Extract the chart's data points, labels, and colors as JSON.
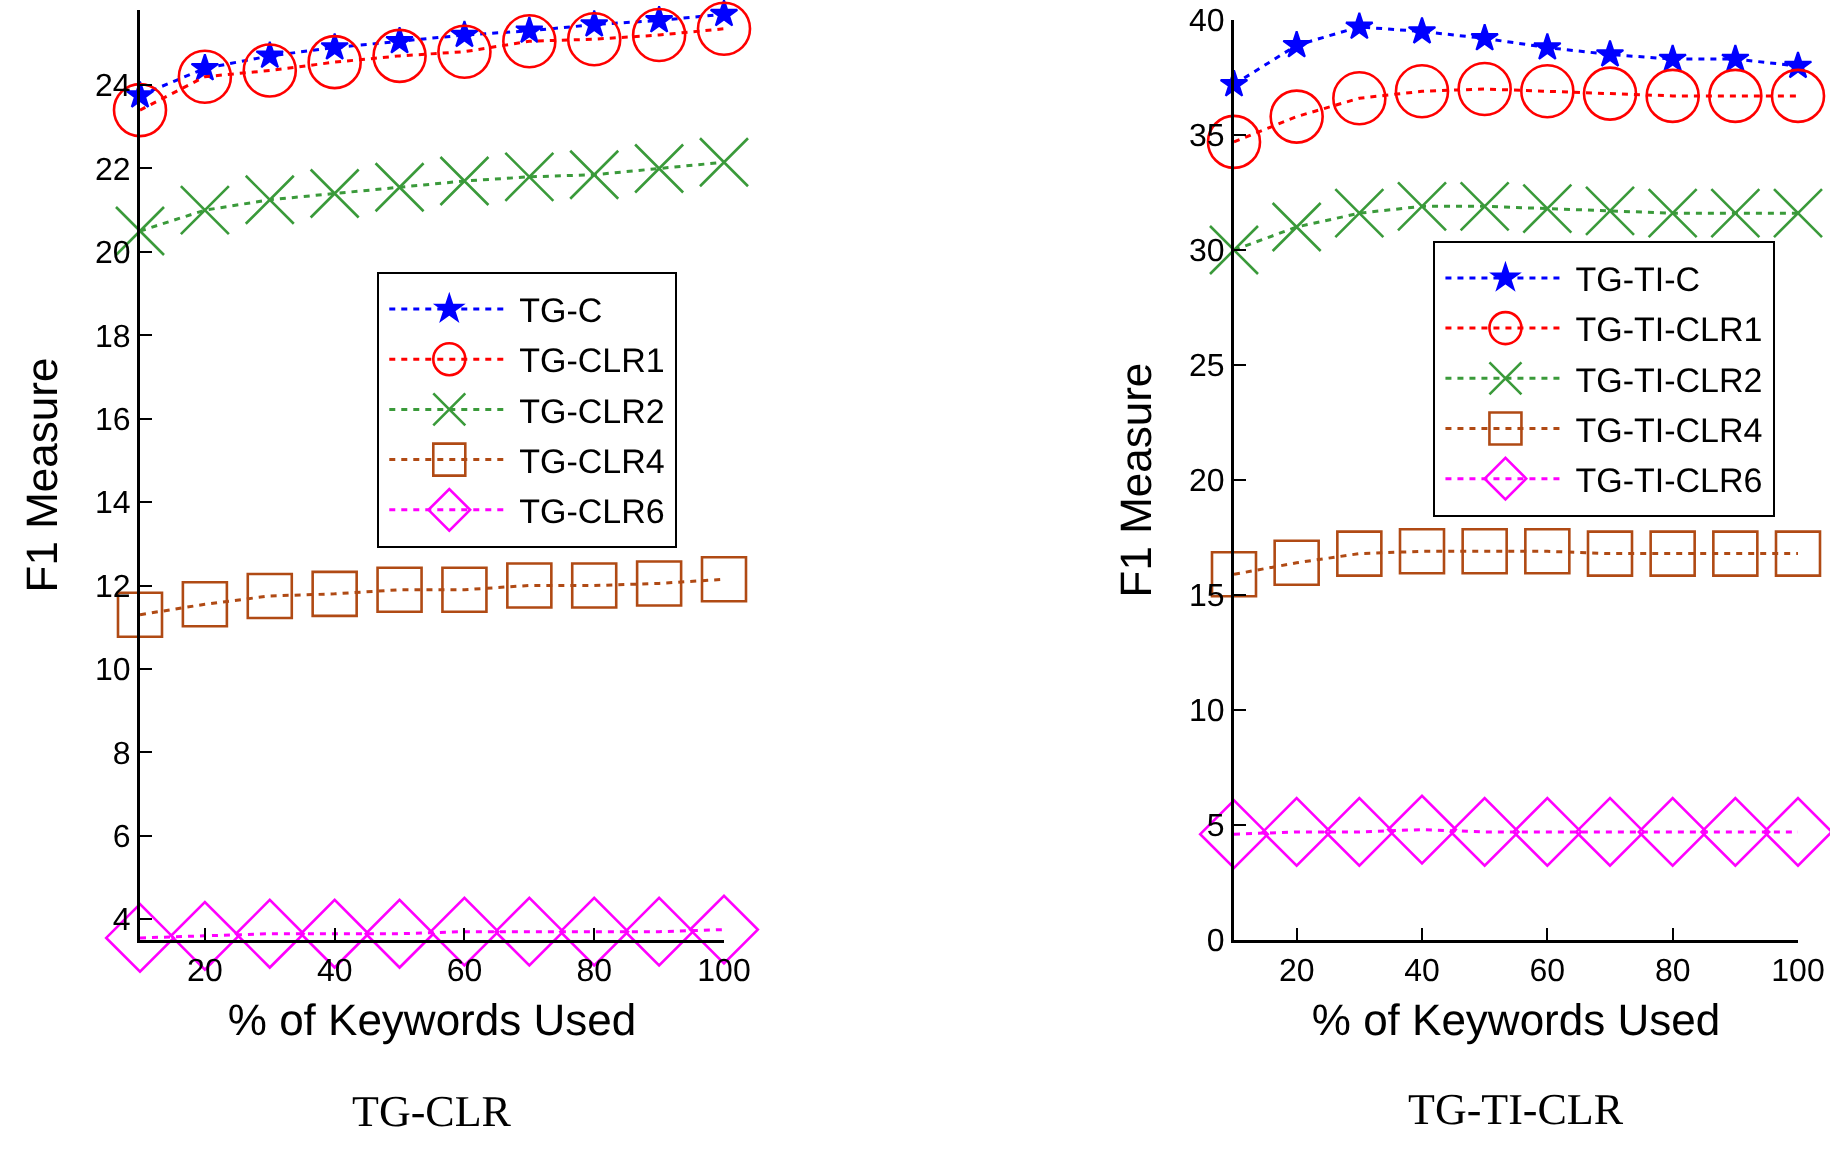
{
  "chart_data": [
    {
      "type": "line",
      "title": "TG-CLR",
      "xlabel": "% of Keywords Used",
      "ylabel": "F1 Measure",
      "x": [
        10,
        20,
        30,
        40,
        50,
        60,
        70,
        80,
        90,
        100
      ],
      "xlim": [
        10,
        100
      ],
      "xticks": [
        20,
        40,
        60,
        80,
        100
      ],
      "ylim": [
        3.5,
        25.8
      ],
      "yticks": [
        4,
        6,
        8,
        10,
        12,
        14,
        16,
        18,
        20,
        22,
        24
      ],
      "grid": false,
      "legend": "right",
      "line_style": "dotted",
      "series": [
        {
          "name": "TG-C",
          "color": "#0000ff",
          "marker": "star",
          "values": [
            23.75,
            24.4,
            24.7,
            24.9,
            25.05,
            25.2,
            25.3,
            25.45,
            25.55,
            25.7
          ]
        },
        {
          "name": "TG-CLR1",
          "color": "#ff0000",
          "marker": "circle",
          "values": [
            23.4,
            24.2,
            24.35,
            24.55,
            24.7,
            24.8,
            25.05,
            25.1,
            25.2,
            25.35
          ]
        },
        {
          "name": "TG-CLR2",
          "color": "#3a9a3a",
          "marker": "cross",
          "values": [
            20.5,
            21.0,
            21.25,
            21.4,
            21.55,
            21.7,
            21.8,
            21.85,
            22.0,
            22.15
          ]
        },
        {
          "name": "TG-CLR4",
          "color": "#b04a14",
          "marker": "square",
          "values": [
            11.3,
            11.55,
            11.75,
            11.8,
            11.9,
            11.9,
            12.0,
            12.0,
            12.05,
            12.15
          ]
        },
        {
          "name": "TG-CLR6",
          "color": "#ff00ff",
          "marker": "diamond",
          "values": [
            3.55,
            3.6,
            3.65,
            3.65,
            3.65,
            3.7,
            3.7,
            3.7,
            3.7,
            3.75
          ]
        }
      ]
    },
    {
      "type": "line",
      "title": "TG-TI-CLR",
      "xlabel": "% of Keywords Used",
      "ylabel": "F1 Measure",
      "x": [
        10,
        20,
        30,
        40,
        50,
        60,
        70,
        80,
        90,
        100
      ],
      "xlim": [
        10,
        100
      ],
      "xticks": [
        20,
        40,
        60,
        80,
        100
      ],
      "ylim": [
        0,
        40
      ],
      "yticks": [
        0,
        5,
        10,
        15,
        20,
        25,
        30,
        35,
        40
      ],
      "grid": false,
      "legend": "top right",
      "line_style": "dotted",
      "series": [
        {
          "name": "TG-TI-C",
          "color": "#0000ff",
          "marker": "star",
          "values": [
            37.2,
            38.9,
            39.7,
            39.5,
            39.2,
            38.8,
            38.5,
            38.3,
            38.3,
            38.0
          ]
        },
        {
          "name": "TG-TI-CLR1",
          "color": "#ff0000",
          "marker": "circle",
          "values": [
            34.7,
            35.8,
            36.6,
            36.9,
            37.0,
            36.9,
            36.8,
            36.7,
            36.7,
            36.7
          ]
        },
        {
          "name": "TG-TI-CLR2",
          "color": "#3a9a3a",
          "marker": "cross",
          "values": [
            30.0,
            31.0,
            31.6,
            31.9,
            31.9,
            31.8,
            31.7,
            31.6,
            31.6,
            31.6
          ]
        },
        {
          "name": "TG-TI-CLR4",
          "color": "#b04a14",
          "marker": "square",
          "values": [
            15.9,
            16.4,
            16.8,
            16.9,
            16.9,
            16.9,
            16.8,
            16.8,
            16.8,
            16.8
          ]
        },
        {
          "name": "TG-TI-CLR6",
          "color": "#ff00ff",
          "marker": "diamond",
          "values": [
            4.6,
            4.7,
            4.7,
            4.8,
            4.7,
            4.7,
            4.7,
            4.7,
            4.7,
            4.7
          ]
        }
      ]
    }
  ]
}
